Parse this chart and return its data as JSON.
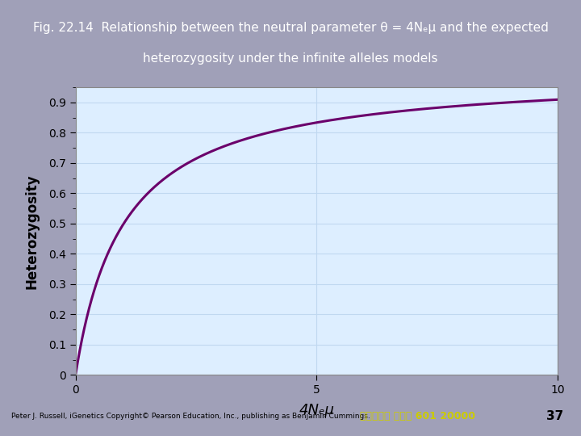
{
  "title_line1": "Fig. 22.14  Relationship between the neutral parameter θ = 4Nₑμ and the expected",
  "title_line2": "heterozygosity under the infinite alleles models",
  "title_bg_color": "#3d0030",
  "title_text_color": "#ffffff",
  "plot_bg_color": "#ddeeff",
  "curve_color": "#6b006b",
  "curve_linewidth": 2.2,
  "xlabel": "4Nₑμ",
  "ylabel": "Heterozygosity",
  "xlim": [
    0,
    10
  ],
  "ylim": [
    0,
    0.95
  ],
  "xticks": [
    0,
    5,
    10
  ],
  "yticks": [
    0,
    0.1,
    0.2,
    0.3,
    0.4,
    0.5,
    0.6,
    0.7,
    0.8,
    0.9
  ],
  "footer_left": "Peter J. Russell, iGenetics Copyright© Pearson Education, Inc., publishing as Benjamin Cummings.",
  "footer_right_part1": "台大農藝系 遺傳學 601 20000",
  "footer_page": "37",
  "grid_color": "#c0d8f0",
  "outer_bg_color": "#a0a0b8"
}
